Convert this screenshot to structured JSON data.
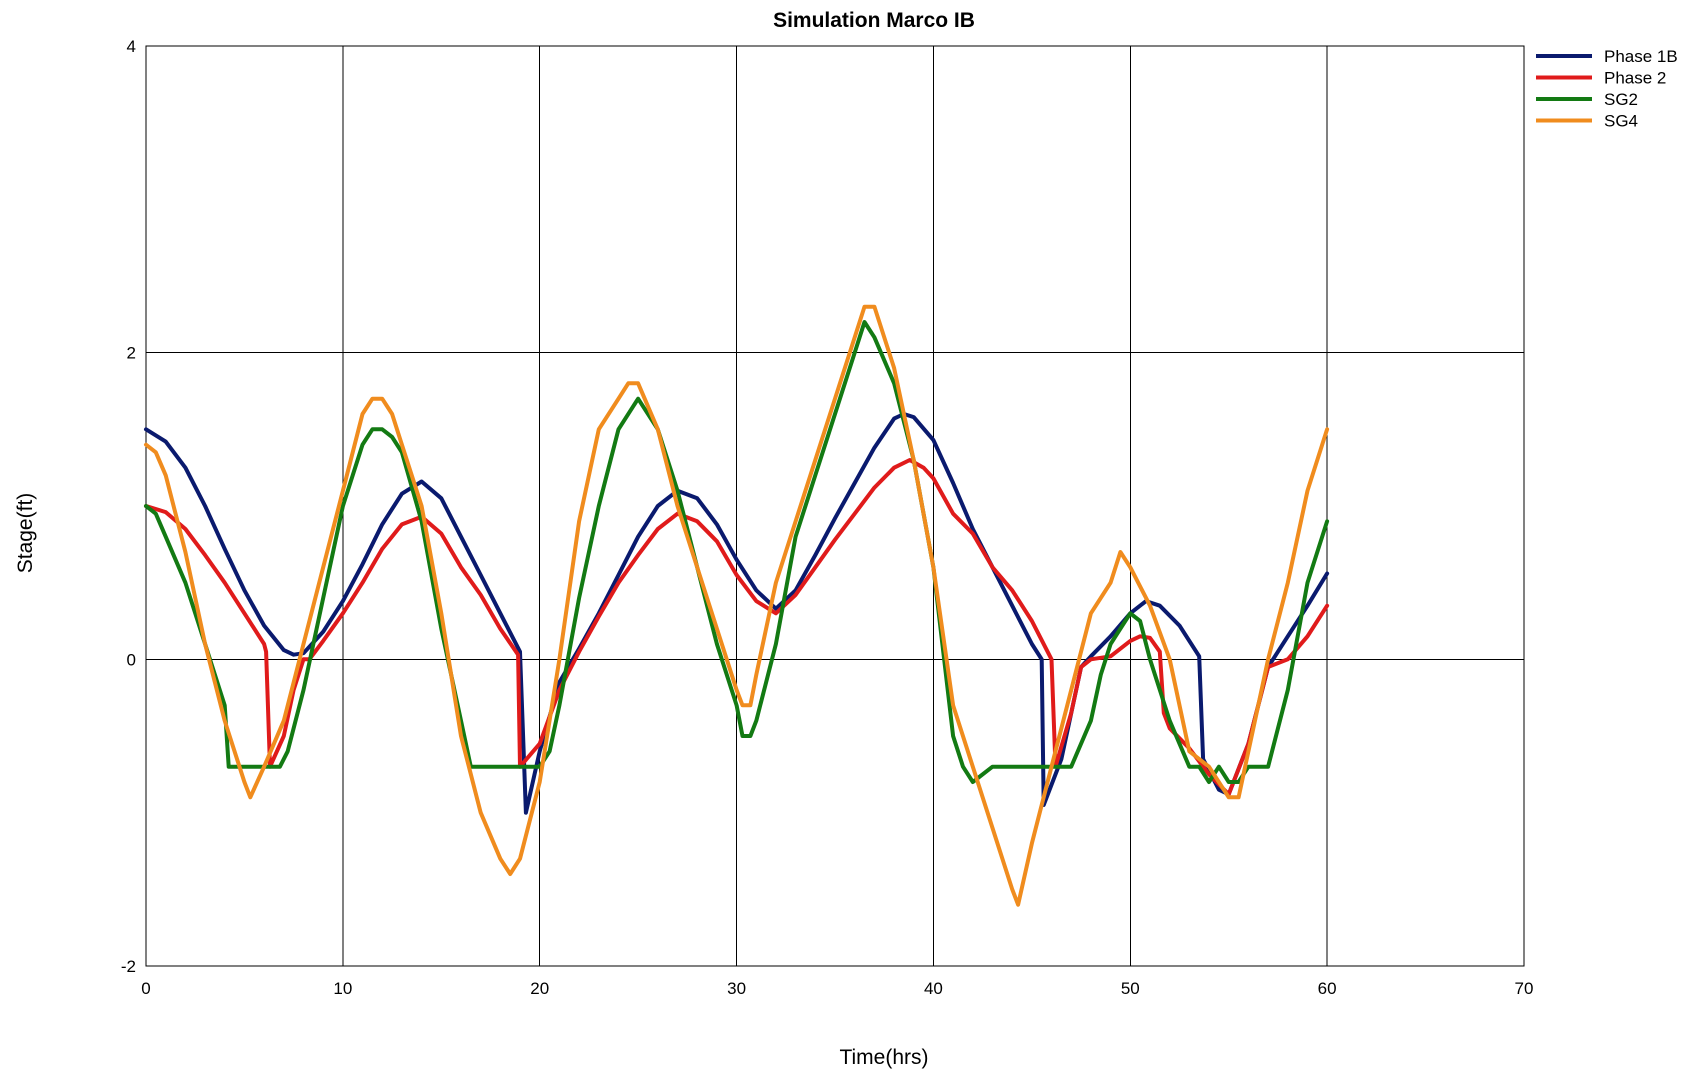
{
  "chart_data": {
    "type": "line",
    "title": "Simulation Marco IB",
    "xlabel": "Time(hrs)",
    "ylabel": "Stage(ft)",
    "xlim": [
      0,
      70
    ],
    "ylim": [
      -2,
      4
    ],
    "xticks": [
      0,
      10,
      20,
      30,
      40,
      50,
      60,
      70
    ],
    "yticks": [
      -2,
      0,
      2,
      4
    ],
    "grid": true,
    "legend_position": "top-right",
    "series": [
      {
        "name": "Phase 1B",
        "color": "#0a1a6e",
        "points": [
          [
            0,
            1.5
          ],
          [
            1,
            1.42
          ],
          [
            2,
            1.25
          ],
          [
            3,
            1.0
          ],
          [
            4,
            0.72
          ],
          [
            5,
            0.45
          ],
          [
            6,
            0.22
          ],
          [
            7,
            0.06
          ],
          [
            7.5,
            0.03
          ],
          [
            8,
            0.04
          ],
          [
            9,
            0.18
          ],
          [
            10,
            0.38
          ],
          [
            11,
            0.62
          ],
          [
            12,
            0.88
          ],
          [
            13,
            1.08
          ],
          [
            14,
            1.16
          ],
          [
            15,
            1.05
          ],
          [
            16,
            0.8
          ],
          [
            17,
            0.55
          ],
          [
            18,
            0.3
          ],
          [
            19,
            0.05
          ],
          [
            19.3,
            -1.0
          ],
          [
            20,
            -0.6
          ],
          [
            21,
            -0.15
          ],
          [
            22,
            0.07
          ],
          [
            23,
            0.3
          ],
          [
            24,
            0.55
          ],
          [
            25,
            0.8
          ],
          [
            26,
            1.0
          ],
          [
            27,
            1.1
          ],
          [
            28,
            1.05
          ],
          [
            29,
            0.88
          ],
          [
            30,
            0.65
          ],
          [
            31,
            0.45
          ],
          [
            32,
            0.33
          ],
          [
            33,
            0.45
          ],
          [
            34,
            0.68
          ],
          [
            35,
            0.92
          ],
          [
            36,
            1.15
          ],
          [
            37,
            1.38
          ],
          [
            38,
            1.57
          ],
          [
            38.5,
            1.6
          ],
          [
            39,
            1.58
          ],
          [
            40,
            1.43
          ],
          [
            41,
            1.15
          ],
          [
            42,
            0.85
          ],
          [
            43,
            0.6
          ],
          [
            44,
            0.35
          ],
          [
            45,
            0.1
          ],
          [
            45.5,
            0.0
          ],
          [
            45.6,
            -0.95
          ],
          [
            46.5,
            -0.65
          ],
          [
            47.5,
            -0.05
          ],
          [
            48,
            0.02
          ],
          [
            49,
            0.15
          ],
          [
            50,
            0.3
          ],
          [
            50.8,
            0.38
          ],
          [
            51.5,
            0.35
          ],
          [
            52.5,
            0.22
          ],
          [
            53.5,
            0.02
          ],
          [
            53.7,
            -0.65
          ],
          [
            54.5,
            -0.85
          ],
          [
            55,
            -0.88
          ],
          [
            56,
            -0.55
          ],
          [
            57,
            -0.05
          ],
          [
            58,
            0.15
          ],
          [
            59,
            0.35
          ],
          [
            60,
            0.56
          ]
        ]
      },
      {
        "name": "Phase 2",
        "color": "#e01b1b",
        "points": [
          [
            0,
            1.0
          ],
          [
            1,
            0.96
          ],
          [
            2,
            0.85
          ],
          [
            3,
            0.68
          ],
          [
            4,
            0.5
          ],
          [
            5,
            0.3
          ],
          [
            6,
            0.1
          ],
          [
            6.1,
            0.05
          ],
          [
            6.3,
            -0.7
          ],
          [
            7,
            -0.5
          ],
          [
            7.5,
            -0.2
          ],
          [
            8,
            0.0
          ],
          [
            8.3,
            0.0
          ],
          [
            9,
            0.12
          ],
          [
            10,
            0.3
          ],
          [
            11,
            0.5
          ],
          [
            12,
            0.72
          ],
          [
            13,
            0.88
          ],
          [
            14,
            0.93
          ],
          [
            15,
            0.82
          ],
          [
            16,
            0.6
          ],
          [
            17,
            0.42
          ],
          [
            18,
            0.2
          ],
          [
            18.9,
            0.03
          ],
          [
            19,
            -0.7
          ],
          [
            20,
            -0.55
          ],
          [
            21,
            -0.2
          ],
          [
            22,
            0.05
          ],
          [
            23,
            0.28
          ],
          [
            24,
            0.5
          ],
          [
            25,
            0.68
          ],
          [
            26,
            0.85
          ],
          [
            27,
            0.95
          ],
          [
            28,
            0.9
          ],
          [
            29,
            0.77
          ],
          [
            30,
            0.55
          ],
          [
            31,
            0.38
          ],
          [
            32,
            0.3
          ],
          [
            33,
            0.42
          ],
          [
            34,
            0.6
          ],
          [
            35,
            0.78
          ],
          [
            36,
            0.95
          ],
          [
            37,
            1.12
          ],
          [
            38,
            1.25
          ],
          [
            38.8,
            1.3
          ],
          [
            39.5,
            1.25
          ],
          [
            40,
            1.18
          ],
          [
            41,
            0.95
          ],
          [
            42,
            0.82
          ],
          [
            43,
            0.6
          ],
          [
            44,
            0.45
          ],
          [
            45,
            0.25
          ],
          [
            46,
            0.0
          ],
          [
            46.2,
            -0.7
          ],
          [
            47,
            -0.35
          ],
          [
            47.5,
            -0.05
          ],
          [
            48,
            0.0
          ],
          [
            49,
            0.02
          ],
          [
            50,
            0.12
          ],
          [
            50.5,
            0.15
          ],
          [
            51,
            0.14
          ],
          [
            51.5,
            0.05
          ],
          [
            51.7,
            -0.35
          ],
          [
            52,
            -0.45
          ],
          [
            53,
            -0.58
          ],
          [
            54,
            -0.75
          ],
          [
            55,
            -0.88
          ],
          [
            56,
            -0.55
          ],
          [
            57,
            -0.05
          ],
          [
            58,
            0.0
          ],
          [
            59,
            0.15
          ],
          [
            60,
            0.35
          ]
        ]
      },
      {
        "name": "SG2",
        "color": "#137a13",
        "points": [
          [
            0,
            1.0
          ],
          [
            0.5,
            0.95
          ],
          [
            1,
            0.8
          ],
          [
            2,
            0.5
          ],
          [
            3,
            0.1
          ],
          [
            3.5,
            -0.1
          ],
          [
            4,
            -0.3
          ],
          [
            4.2,
            -0.7
          ],
          [
            5,
            -0.7
          ],
          [
            6,
            -0.7
          ],
          [
            6.8,
            -0.7
          ],
          [
            7.2,
            -0.6
          ],
          [
            8,
            -0.2
          ],
          [
            9,
            0.4
          ],
          [
            10,
            1.0
          ],
          [
            11,
            1.4
          ],
          [
            11.5,
            1.5
          ],
          [
            12,
            1.5
          ],
          [
            12.5,
            1.45
          ],
          [
            13,
            1.35
          ],
          [
            14,
            0.9
          ],
          [
            15,
            0.2
          ],
          [
            16,
            -0.4
          ],
          [
            16.5,
            -0.7
          ],
          [
            17,
            -0.7
          ],
          [
            18,
            -0.7
          ],
          [
            19,
            -0.7
          ],
          [
            20,
            -0.7
          ],
          [
            20.5,
            -0.6
          ],
          [
            21,
            -0.3
          ],
          [
            22,
            0.4
          ],
          [
            23,
            1.0
          ],
          [
            24,
            1.5
          ],
          [
            25,
            1.7
          ],
          [
            26,
            1.5
          ],
          [
            27,
            1.1
          ],
          [
            28,
            0.6
          ],
          [
            29,
            0.1
          ],
          [
            30,
            -0.3
          ],
          [
            30.3,
            -0.5
          ],
          [
            30.7,
            -0.5
          ],
          [
            31,
            -0.4
          ],
          [
            32,
            0.1
          ],
          [
            33,
            0.8
          ],
          [
            34,
            1.2
          ],
          [
            35,
            1.6
          ],
          [
            36,
            2.0
          ],
          [
            36.5,
            2.2
          ],
          [
            37,
            2.1
          ],
          [
            38,
            1.8
          ],
          [
            39,
            1.3
          ],
          [
            40,
            0.6
          ],
          [
            41,
            -0.5
          ],
          [
            41.5,
            -0.7
          ],
          [
            42,
            -0.8
          ],
          [
            43,
            -0.7
          ],
          [
            44,
            -0.7
          ],
          [
            45,
            -0.7
          ],
          [
            46,
            -0.7
          ],
          [
            47,
            -0.7
          ],
          [
            48,
            -0.4
          ],
          [
            48.5,
            -0.1
          ],
          [
            49,
            0.1
          ],
          [
            49.5,
            0.2
          ],
          [
            50,
            0.3
          ],
          [
            50.5,
            0.25
          ],
          [
            51,
            0.0
          ],
          [
            52,
            -0.4
          ],
          [
            53,
            -0.7
          ],
          [
            53.5,
            -0.7
          ],
          [
            54,
            -0.8
          ],
          [
            54.5,
            -0.7
          ],
          [
            55,
            -0.8
          ],
          [
            55.5,
            -0.8
          ],
          [
            56,
            -0.7
          ],
          [
            57,
            -0.7
          ],
          [
            58,
            -0.2
          ],
          [
            59,
            0.5
          ],
          [
            60,
            0.9
          ]
        ]
      },
      {
        "name": "SG4",
        "color": "#f08c1e",
        "points": [
          [
            0,
            1.4
          ],
          [
            0.5,
            1.35
          ],
          [
            1,
            1.2
          ],
          [
            2,
            0.7
          ],
          [
            3,
            0.1
          ],
          [
            4,
            -0.4
          ],
          [
            5,
            -0.8
          ],
          [
            5.3,
            -0.9
          ],
          [
            6,
            -0.7
          ],
          [
            7,
            -0.4
          ],
          [
            8,
            0.1
          ],
          [
            9,
            0.6
          ],
          [
            10,
            1.1
          ],
          [
            11,
            1.6
          ],
          [
            11.5,
            1.7
          ],
          [
            12,
            1.7
          ],
          [
            12.5,
            1.6
          ],
          [
            13,
            1.4
          ],
          [
            14,
            1.0
          ],
          [
            15,
            0.3
          ],
          [
            16,
            -0.5
          ],
          [
            17,
            -1.0
          ],
          [
            18,
            -1.3
          ],
          [
            18.5,
            -1.4
          ],
          [
            19,
            -1.3
          ],
          [
            20,
            -0.8
          ],
          [
            21,
            0.0
          ],
          [
            22,
            0.9
          ],
          [
            23,
            1.5
          ],
          [
            24,
            1.7
          ],
          [
            24.5,
            1.8
          ],
          [
            25,
            1.8
          ],
          [
            26,
            1.5
          ],
          [
            27,
            1.0
          ],
          [
            28,
            0.6
          ],
          [
            29,
            0.2
          ],
          [
            30,
            -0.2
          ],
          [
            30.3,
            -0.3
          ],
          [
            30.7,
            -0.3
          ],
          [
            31,
            -0.1
          ],
          [
            32,
            0.5
          ],
          [
            33,
            0.9
          ],
          [
            34,
            1.3
          ],
          [
            35,
            1.7
          ],
          [
            36,
            2.1
          ],
          [
            36.5,
            2.3
          ],
          [
            37,
            2.3
          ],
          [
            38,
            1.9
          ],
          [
            39,
            1.3
          ],
          [
            40,
            0.6
          ],
          [
            41,
            -0.3
          ],
          [
            42,
            -0.7
          ],
          [
            43,
            -1.1
          ],
          [
            44,
            -1.5
          ],
          [
            44.3,
            -1.6
          ],
          [
            45,
            -1.2
          ],
          [
            46,
            -0.7
          ],
          [
            47,
            -0.2
          ],
          [
            48,
            0.3
          ],
          [
            49,
            0.5
          ],
          [
            49.5,
            0.7
          ],
          [
            50,
            0.6
          ],
          [
            51,
            0.35
          ],
          [
            52,
            0.0
          ],
          [
            53,
            -0.6
          ],
          [
            54,
            -0.7
          ],
          [
            55,
            -0.9
          ],
          [
            55.5,
            -0.9
          ],
          [
            56,
            -0.6
          ],
          [
            57,
            0.0
          ],
          [
            58,
            0.5
          ],
          [
            59,
            1.1
          ],
          [
            60,
            1.5
          ]
        ]
      }
    ]
  }
}
